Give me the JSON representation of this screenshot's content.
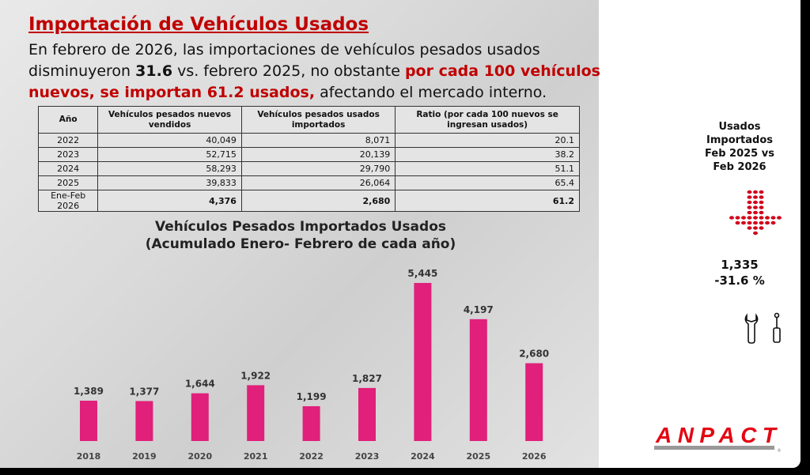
{
  "title": "Importación de Vehículos Usados",
  "subtitle": {
    "p1": "En febrero de 2026, las importaciones de vehículos pesados usados disminuyeron ",
    "p2": "31.6",
    "p3": " vs. febrero 2025, no obstante ",
    "p4": "por cada 100 vehículos nuevos, se importan 61.2 usados,",
    "p5": " afectando el mercado interno."
  },
  "table": {
    "headers": [
      "Año",
      "Vehículos pesados nuevos vendidos",
      "Vehículos pesados usados importados",
      "Ratio (por cada 100 nuevos se ingresan usados)"
    ],
    "rows": [
      [
        "2022",
        "40,049",
        "8,071",
        "20.1"
      ],
      [
        "2023",
        "52,715",
        "20,139",
        "38.2"
      ],
      [
        "2024",
        "58,293",
        "29,790",
        "51.1"
      ],
      [
        "2025",
        "39,833",
        "26,064",
        "65.4"
      ],
      [
        "Ene-Feb 2026",
        "4,376",
        "2,680",
        "61.2"
      ]
    ]
  },
  "side": {
    "title": "Usados Importados Feb 2025 vs Feb 2026",
    "value": "1,335",
    "change": "-31.6 %",
    "arrow_color": "#d0021b"
  },
  "logo": "ANPACT",
  "chart_data": {
    "type": "bar",
    "title": "Vehículos Pesados Importados Usados",
    "subtitle": "(Acumulado Enero- Febrero de cada año)",
    "categories": [
      "2018",
      "2019",
      "2020",
      "2021",
      "2022",
      "2023",
      "2024",
      "2025",
      "2026"
    ],
    "values": [
      1389,
      1377,
      1644,
      1922,
      1199,
      1827,
      5445,
      4197,
      2680
    ],
    "labels": [
      "1,389",
      "1,377",
      "1,644",
      "1,922",
      "1,199",
      "1,827",
      "5,445",
      "4,197",
      "2,680"
    ],
    "color": "#e0207a",
    "grid": false
  }
}
